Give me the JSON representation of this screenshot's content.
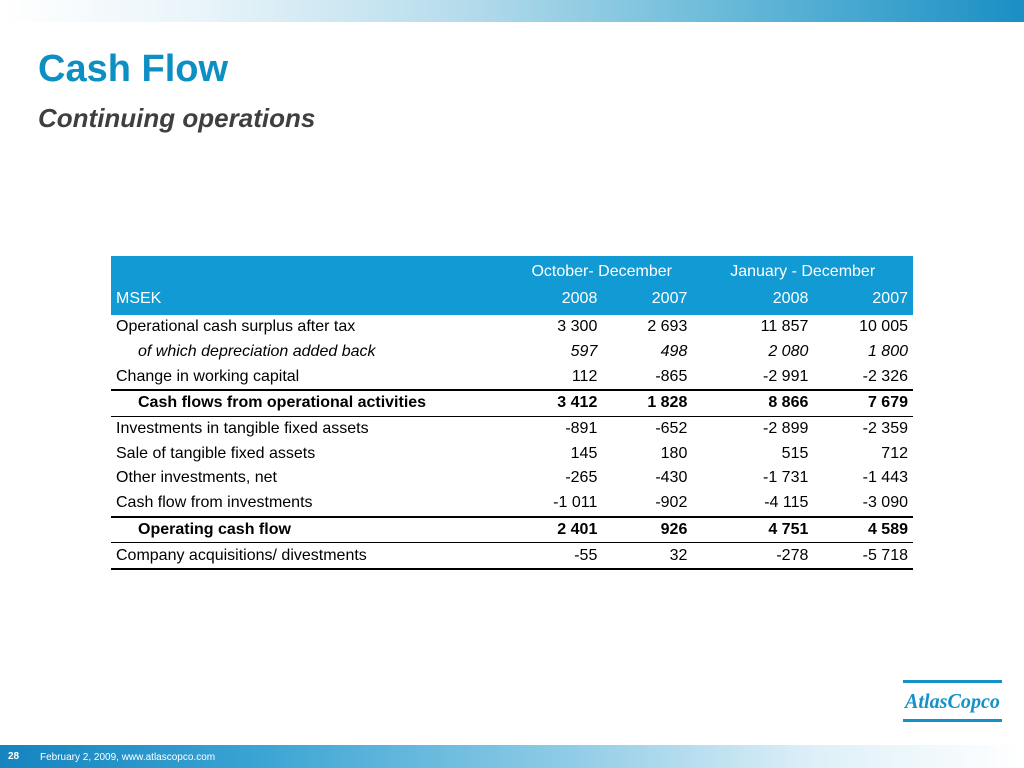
{
  "slide": {
    "title": "Cash Flow",
    "subtitle": "Continuing operations",
    "page_number": "28",
    "footer_text": "February 2, 2009, www.atlascopco.com",
    "logo_text": "AtlasCopco",
    "colors": {
      "accent": "#0d8fc4",
      "table_header": "#119ad3",
      "subtitle": "#3f3f3f"
    }
  },
  "table": {
    "unit_label": "MSEK",
    "period_q": "October- December",
    "period_y": "January - December",
    "years": [
      "2008",
      "2007",
      "2008",
      "2007"
    ],
    "rows": [
      {
        "label": "Operational cash surplus after tax",
        "values": [
          "3 300",
          "2 693",
          "11 857",
          "10 005"
        ],
        "style": "normal"
      },
      {
        "label": "of which depreciation added back",
        "values": [
          "597",
          "498",
          "2 080",
          "1 800"
        ],
        "style": "italic"
      },
      {
        "label": "Change in working capital",
        "values": [
          "112",
          "-865",
          "-2 991",
          "-2 326"
        ],
        "style": "normal"
      },
      {
        "label": "Cash flows from operational activities",
        "values": [
          "3 412",
          "1 828",
          "8 866",
          "7 679"
        ],
        "style": "bold"
      },
      {
        "label": "Investments in tangible fixed assets",
        "values": [
          "-891",
          "-652",
          "-2 899",
          "-2 359"
        ],
        "style": "normal"
      },
      {
        "label": "Sale of tangible fixed assets",
        "values": [
          "145",
          "180",
          "515",
          "712"
        ],
        "style": "normal"
      },
      {
        "label": "Other investments, net",
        "values": [
          "-265",
          "-430",
          "-1 731",
          "-1 443"
        ],
        "style": "normal"
      },
      {
        "label": "Cash flow from investments",
        "values": [
          "-1 011",
          "-902",
          "-4 115",
          "-3 090"
        ],
        "style": "normal"
      },
      {
        "label": "Operating cash flow",
        "values": [
          "2 401",
          "926",
          "4 751",
          "4 589"
        ],
        "style": "bold"
      },
      {
        "label": "Company acquisitions/ divestments",
        "values": [
          "-55",
          "32",
          "-278",
          "-5 718"
        ],
        "style": "normal"
      }
    ]
  }
}
